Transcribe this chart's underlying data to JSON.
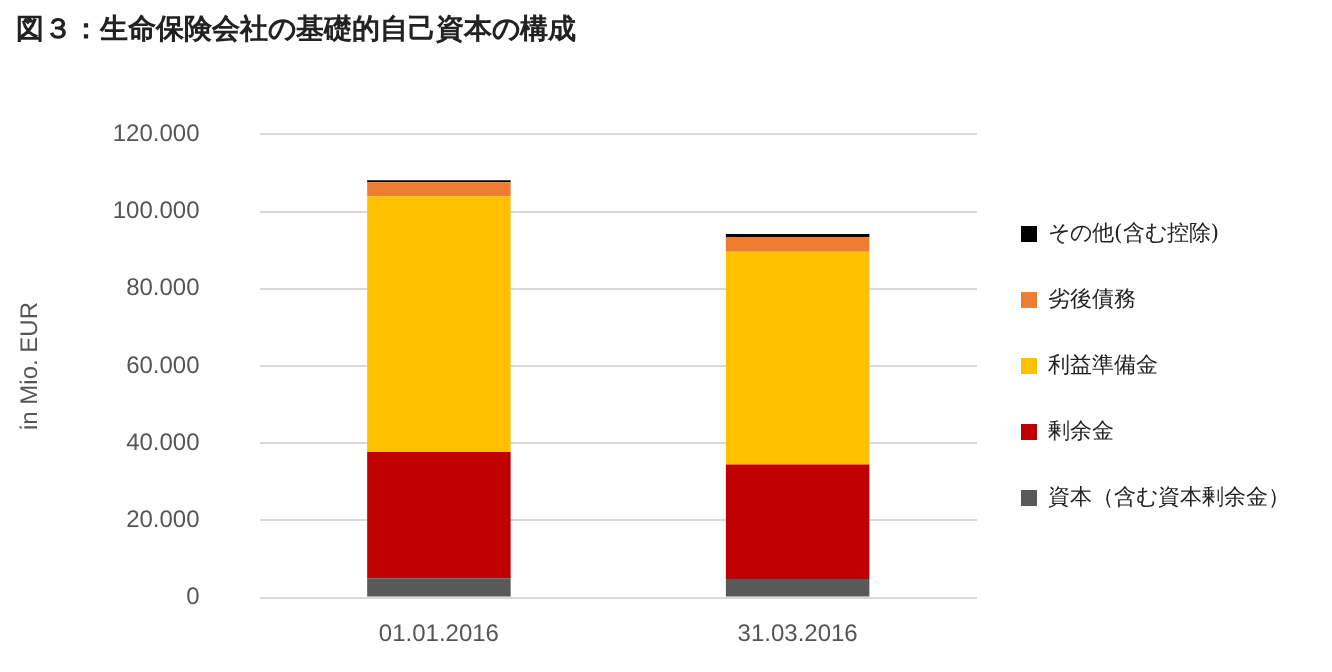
{
  "chart_data": {
    "type": "bar",
    "stacked": true,
    "title": "図３：生命保険会社の基礎的自己資本の構成",
    "ylabel": "in Mio. EUR",
    "categories": [
      "01.01.2016",
      "31.03.2016"
    ],
    "series": [
      {
        "name": "資本（含む資本剰余金）",
        "color": "#595959",
        "values": [
          5000,
          4800
        ]
      },
      {
        "name": "剰余金",
        "color": "#c00000",
        "values": [
          32700,
          29700
        ]
      },
      {
        "name": "利益準備金",
        "color": "#ffc000",
        "values": [
          66200,
          55100
        ]
      },
      {
        "name": "劣後債務",
        "color": "#ed7d31",
        "values": [
          3700,
          3800
        ]
      },
      {
        "name": "その他(含む控除)",
        "color": "#000000",
        "values": [
          500,
          800
        ]
      }
    ],
    "ylim": [
      0,
      120000
    ],
    "yticks": [
      {
        "value": 0,
        "label": "0"
      },
      {
        "value": 20000,
        "label": "20.000"
      },
      {
        "value": 40000,
        "label": "40.000"
      },
      {
        "value": 60000,
        "label": "60.000"
      },
      {
        "value": 80000,
        "label": "80.000"
      },
      {
        "value": 100000,
        "label": "100.000"
      },
      {
        "value": 120000,
        "label": "120.000"
      }
    ],
    "grid": "y",
    "legend": "right"
  }
}
